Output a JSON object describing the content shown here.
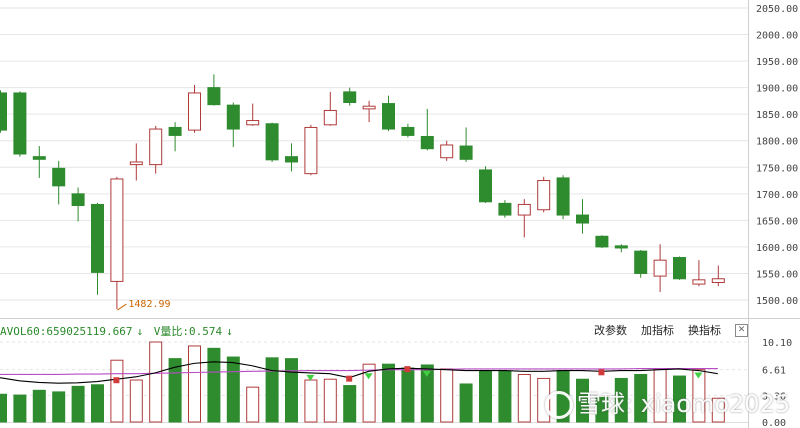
{
  "colors": {
    "up": "#b03a3a",
    "down": "#2e8b2e",
    "grid": "#e6e6e6",
    "ma": "#000000",
    "ma2": "#b84cc4",
    "annot": "#cc6600"
  },
  "price_axis": [
    "2050.00",
    "2000.00",
    "1950.00",
    "1900.00",
    "1850.00",
    "1800.00",
    "1750.00",
    "1700.00",
    "1650.00",
    "1600.00",
    "1550.00",
    "1500.00"
  ],
  "volume_axis": [
    "10.10",
    "6.61",
    "3.36",
    "0.00"
  ],
  "volume_legend": {
    "avol": "AVOL60:659025119.667",
    "arrow1": "↓",
    "vratio": "V量比:0.574",
    "arrow2": "↓"
  },
  "toolbar": {
    "change_params": "改参数",
    "add_indicator": "加指标",
    "swap_indicator": "换指标",
    "close": "✕"
  },
  "low_annotation": "1482.99",
  "watermark": {
    "text": "雪球: xiaomo2025"
  },
  "chart_data": {
    "type": "candlestick",
    "ylim": [
      1480,
      2060
    ],
    "candles": [
      {
        "o": 1890,
        "c": 1820,
        "h": 1895,
        "l": 1815
      },
      {
        "o": 1890,
        "c": 1775,
        "h": 1893,
        "l": 1770
      },
      {
        "o": 1770,
        "c": 1765,
        "h": 1790,
        "l": 1730
      },
      {
        "o": 1748,
        "c": 1715,
        "h": 1762,
        "l": 1680
      },
      {
        "o": 1700,
        "c": 1678,
        "h": 1712,
        "l": 1648
      },
      {
        "o": 1680,
        "c": 1552,
        "h": 1683,
        "l": 1510
      },
      {
        "o": 1535,
        "c": 1728,
        "h": 1732,
        "l": 1482.99
      },
      {
        "o": 1755,
        "c": 1760,
        "h": 1795,
        "l": 1725
      },
      {
        "o": 1755,
        "c": 1822,
        "h": 1828,
        "l": 1738
      },
      {
        "o": 1825,
        "c": 1810,
        "h": 1835,
        "l": 1780
      },
      {
        "o": 1820,
        "c": 1890,
        "h": 1905,
        "l": 1815
      },
      {
        "o": 1900,
        "c": 1868,
        "h": 1925,
        "l": 1866
      },
      {
        "o": 1867,
        "c": 1822,
        "h": 1872,
        "l": 1788
      },
      {
        "o": 1830,
        "c": 1838,
        "h": 1870,
        "l": 1828
      },
      {
        "o": 1832,
        "c": 1764,
        "h": 1834,
        "l": 1760
      },
      {
        "o": 1770,
        "c": 1760,
        "h": 1795,
        "l": 1742
      },
      {
        "o": 1738,
        "c": 1825,
        "h": 1830,
        "l": 1735
      },
      {
        "o": 1830,
        "c": 1857,
        "h": 1892,
        "l": 1828
      },
      {
        "o": 1892,
        "c": 1872,
        "h": 1900,
        "l": 1866
      },
      {
        "o": 1860,
        "c": 1865,
        "h": 1875,
        "l": 1835
      },
      {
        "o": 1870,
        "c": 1822,
        "h": 1885,
        "l": 1818
      },
      {
        "o": 1825,
        "c": 1810,
        "h": 1832,
        "l": 1806
      },
      {
        "o": 1808,
        "c": 1785,
        "h": 1860,
        "l": 1782
      },
      {
        "o": 1768,
        "c": 1792,
        "h": 1800,
        "l": 1762
      },
      {
        "o": 1790,
        "c": 1765,
        "h": 1825,
        "l": 1760
      },
      {
        "o": 1745,
        "c": 1685,
        "h": 1752,
        "l": 1683
      },
      {
        "o": 1682,
        "c": 1660,
        "h": 1688,
        "l": 1655
      },
      {
        "o": 1660,
        "c": 1680,
        "h": 1690,
        "l": 1618
      },
      {
        "o": 1670,
        "c": 1725,
        "h": 1732,
        "l": 1665
      },
      {
        "o": 1730,
        "c": 1660,
        "h": 1735,
        "l": 1652
      },
      {
        "o": 1660,
        "c": 1645,
        "h": 1690,
        "l": 1625
      },
      {
        "o": 1620,
        "c": 1600,
        "h": 1622,
        "l": 1598
      },
      {
        "o": 1602,
        "c": 1598,
        "h": 1605,
        "l": 1590
      },
      {
        "o": 1592,
        "c": 1550,
        "h": 1594,
        "l": 1542
      },
      {
        "o": 1545,
        "c": 1575,
        "h": 1605,
        "l": 1515
      },
      {
        "o": 1580,
        "c": 1540,
        "h": 1582,
        "l": 1538
      },
      {
        "o": 1530,
        "c": 1538,
        "h": 1575,
        "l": 1526
      },
      {
        "o": 1533,
        "c": 1540,
        "h": 1565,
        "l": 1526
      }
    ],
    "volume": [
      3.5,
      3.4,
      4.0,
      3.8,
      4.5,
      4.7,
      7.8,
      5.3,
      10.1,
      8.0,
      9.6,
      9.3,
      8.2,
      4.4,
      8.1,
      8.0,
      5.3,
      5.4,
      4.6,
      7.3,
      7.3,
      6.8,
      7.2,
      6.7,
      4.8,
      6.4,
      6.4,
      6.0,
      5.5,
      6.5,
      5.4,
      3.1,
      5.5,
      6.0,
      6.7,
      5.8,
      6.6,
      3.0
    ],
    "ma_line": [
      5.6,
      5.2,
      5.0,
      4.9,
      4.95,
      5.1,
      5.4,
      5.7,
      6.2,
      6.9,
      7.4,
      7.6,
      7.5,
      7.1,
      6.5,
      6.3,
      6.2,
      6.1,
      5.6,
      6.4,
      6.7,
      6.8,
      6.7,
      6.6,
      6.5,
      6.5,
      6.5,
      6.4,
      6.4,
      6.5,
      6.5,
      6.4,
      6.5,
      6.5,
      6.6,
      6.7,
      6.5,
      6.1
    ],
    "ma_line2": [
      6.0,
      6.0,
      6.0,
      6.0,
      6.05,
      6.05,
      6.1,
      6.1,
      6.15,
      6.2,
      6.25,
      6.3,
      6.35,
      6.4,
      6.45,
      6.45,
      6.5,
      6.5,
      6.5,
      6.55,
      6.6,
      6.6,
      6.6,
      6.65,
      6.7,
      6.7,
      6.7,
      6.7,
      6.7,
      6.7,
      6.7,
      6.7,
      6.7,
      6.75,
      6.75,
      6.75,
      6.75,
      6.75
    ],
    "signals": [
      {
        "i": 6,
        "kind": "up"
      },
      {
        "i": 16,
        "kind": "down"
      },
      {
        "i": 18,
        "kind": "up"
      },
      {
        "i": 19,
        "kind": "down"
      },
      {
        "i": 21,
        "kind": "up"
      },
      {
        "i": 22,
        "kind": "down"
      },
      {
        "i": 31,
        "kind": "up"
      },
      {
        "i": 36,
        "kind": "down"
      }
    ]
  }
}
